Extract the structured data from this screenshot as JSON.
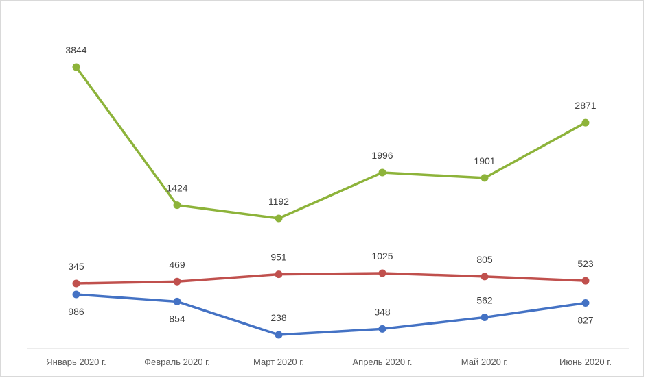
{
  "chart_data": {
    "type": "line",
    "categories": [
      "Январь 2020 г.",
      "Февраль 2020 г.",
      "Март 2020 г.",
      "Апрель 2020 г.",
      "Май 2020 г.",
      "Июнь 2020 г."
    ],
    "series": [
      {
        "values": [
          3844,
          1424,
          1192,
          1996,
          1901,
          2871
        ],
        "color": "#8db33a",
        "label_pos": "above"
      },
      {
        "values": [
          345,
          469,
          951,
          1025,
          805,
          523
        ],
        "color": "#c0504d",
        "label_pos": "above"
      },
      {
        "values": [
          986,
          854,
          238,
          348,
          562,
          827
        ],
        "color": "#4472c4",
        "label_pos": "mixed"
      }
    ],
    "grid": false,
    "legend": "none"
  }
}
